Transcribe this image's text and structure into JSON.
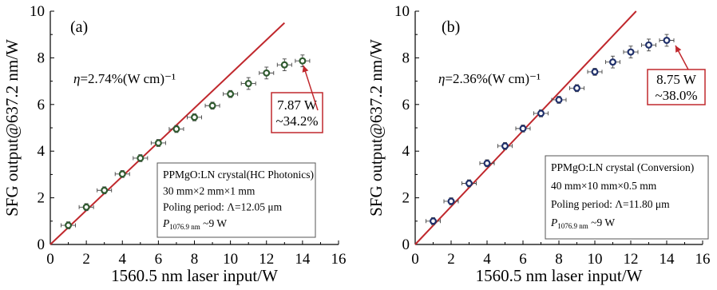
{
  "chart_data": [
    {
      "type": "scatter",
      "panel_label": "(a)",
      "xlabel": "1560.5 nm laser input/W",
      "ylabel": "SFG output@637.2 nm/W",
      "xlim": [
        0,
        16
      ],
      "ylim": [
        0,
        10
      ],
      "xticks": [
        "0",
        "2",
        "4",
        "6",
        "8",
        "10",
        "12",
        "14",
        "16"
      ],
      "yticks": [
        "0",
        "2",
        "4",
        "6",
        "8",
        "10"
      ],
      "grid": false,
      "marker_color": "#2f5a2f",
      "line_color": "#c0282d",
      "x": [
        1,
        2,
        3,
        4,
        5,
        6,
        7,
        8,
        9,
        10,
        11,
        12,
        13,
        14
      ],
      "y": [
        0.82,
        1.6,
        2.32,
        3.02,
        3.7,
        4.35,
        4.95,
        5.45,
        5.95,
        6.45,
        6.9,
        7.35,
        7.7,
        7.87
      ],
      "fit_line": {
        "x": [
          0,
          13.0
        ],
        "y": [
          0,
          9.5
        ]
      },
      "efficiency": {
        "symbol": "η",
        "text": "=2.74%(W cm)⁻¹"
      },
      "info_box": {
        "line1": "PPMgO:LN crystal(HC Photonics)",
        "line2": "30 mm×2 mm×1 mm",
        "line3": "Poling period: Λ=12.05 μm",
        "line4_symbol": "P",
        "line4_subscript": "1076.9 nm",
        "line4_value": " ~9 W"
      },
      "callout": {
        "line1": "7.87 W",
        "line2": "~34.2%"
      }
    },
    {
      "type": "scatter",
      "panel_label": "(b)",
      "xlabel": "1560.5 nm laser input/W",
      "ylabel": "SFG output@637.2 nm/W",
      "xlim": [
        0,
        16
      ],
      "ylim": [
        0,
        10
      ],
      "xticks": [
        "0",
        "2",
        "4",
        "6",
        "8",
        "10",
        "12",
        "14",
        "16"
      ],
      "yticks": [
        "0",
        "2",
        "4",
        "6",
        "8",
        "10"
      ],
      "grid": false,
      "marker_color": "#1f2f6a",
      "line_color": "#c0282d",
      "x": [
        1,
        2,
        3,
        4,
        5,
        6,
        7,
        8,
        9,
        10,
        11,
        12,
        13,
        14
      ],
      "y": [
        1.0,
        1.85,
        2.62,
        3.48,
        4.22,
        4.97,
        5.62,
        6.2,
        6.7,
        7.4,
        7.82,
        8.25,
        8.55,
        8.75
      ],
      "fit_line": {
        "x": [
          0,
          12.3
        ],
        "y": [
          0,
          10
        ]
      },
      "efficiency": {
        "symbol": "η",
        "text": "=2.36%(W cm)⁻¹"
      },
      "info_box": {
        "line1": "PPMgO:LN crystal (Conversion)",
        "line2": "40 mm×10 mm×0.5 mm",
        "line3": "Poling period: Λ=11.80 μm",
        "line4_symbol": "P",
        "line4_subscript": "1076.9 nm",
        "line4_value": " ~9 W"
      },
      "callout": {
        "line1": "8.75 W",
        "line2": "~38.0%"
      }
    }
  ]
}
